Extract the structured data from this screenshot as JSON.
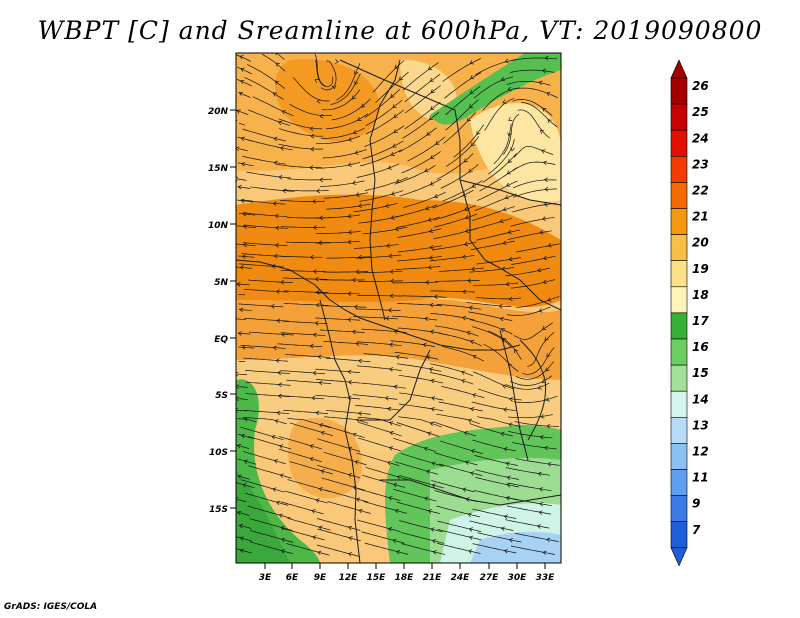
{
  "title": "WBPT [C] and Sreamline at 600hPa, VT: 2019090800",
  "footer": "GrADS: IGES/COLA",
  "map": {
    "lat_labels": [
      "20N",
      "15N",
      "10N",
      "5N",
      "EQ",
      "5S",
      "10S",
      "15S"
    ],
    "lon_labels": [
      "3E",
      "6E",
      "9E",
      "12E",
      "15E",
      "18E",
      "21E",
      "24E",
      "27E",
      "30E",
      "33E"
    ]
  },
  "colorbar": {
    "labels": [
      "26",
      "25",
      "24",
      "23",
      "22",
      "21",
      "20",
      "19",
      "18",
      "17",
      "16",
      "15",
      "14",
      "13",
      "12",
      "11",
      "9",
      "7"
    ],
    "colors": [
      "#a50000",
      "#c60000",
      "#e11000",
      "#f03c00",
      "#f46a00",
      "#f59810",
      "#f8bf45",
      "#fde08a",
      "#fdf2b8",
      "#38b038",
      "#6ccd60",
      "#a2e298",
      "#d4f5ec",
      "#b6dcf8",
      "#8bc0f2",
      "#5e9ff0",
      "#3a7be6",
      "#1e5ed8"
    ]
  }
}
